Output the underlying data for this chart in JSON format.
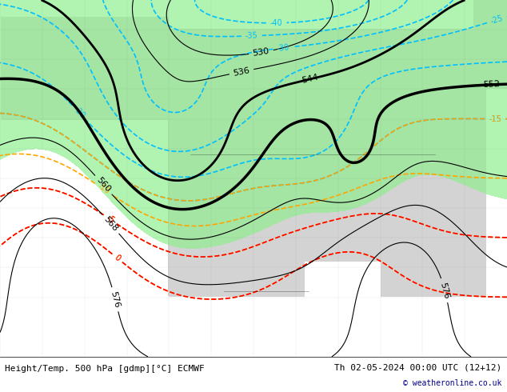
{
  "title_left": "Height/Temp. 500 hPa [gdmp][°C] ECMWF",
  "title_right": "Th 02-05-2024 00:00 UTC (12+12)",
  "copyright": "© weatheronline.co.uk",
  "background_land": "#d3d3d3",
  "background_ocean": "#e8e8e8",
  "green_fill": "#90ee90",
  "fig_width": 6.34,
  "fig_height": 4.9,
  "dpi": 100,
  "footer_bg": "#ffffff",
  "geopotential_contour_color": "#000000",
  "geopotential_thick_color": "#000000",
  "temp_negative_color_1": "#00bfff",
  "temp_negative_color_2": "#008080",
  "temp_warm_color": "#ffa500",
  "temp_hot_color": "#ff0000",
  "label_fontsize": 7,
  "footer_fontsize": 8
}
